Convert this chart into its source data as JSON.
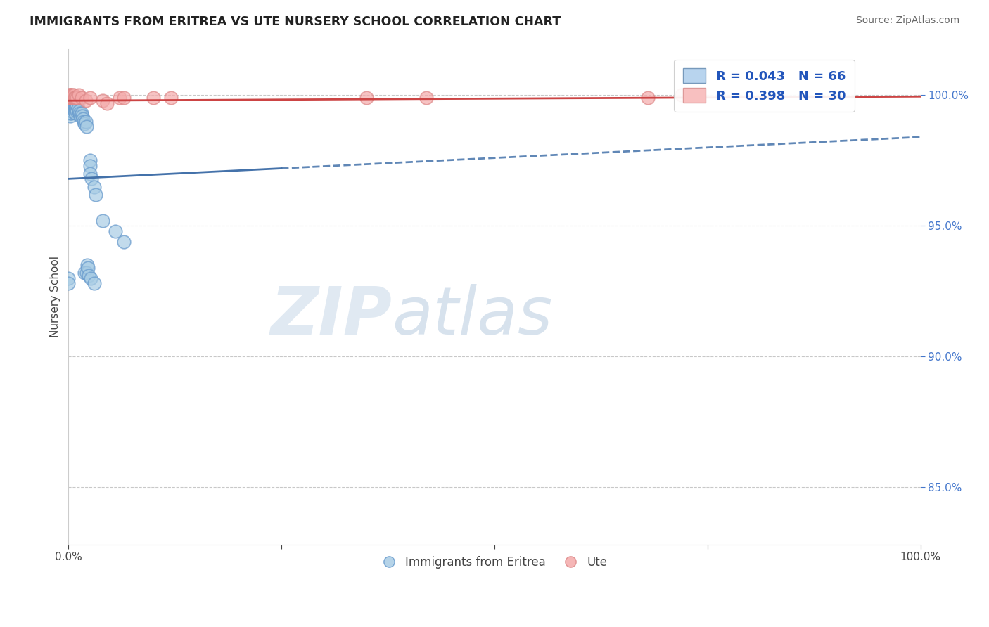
{
  "title": "IMMIGRANTS FROM ERITREA VS UTE NURSERY SCHOOL CORRELATION CHART",
  "source": "Source: ZipAtlas.com",
  "ylabel": "Nursery School",
  "x_series1_label": "Immigrants from Eritrea",
  "x_series2_label": "Ute",
  "legend_r1": "R = 0.043",
  "legend_n1": "N = 66",
  "legend_r2": "R = 0.398",
  "legend_n2": "N = 30",
  "color_blue": "#a8cce4",
  "color_pink": "#f4aaaa",
  "edge_blue": "#6699cc",
  "edge_pink": "#dd8888",
  "trendline_blue": "#4472aa",
  "trendline_pink": "#cc4444",
  "background": "#ffffff",
  "xlim": [
    0.0,
    1.0
  ],
  "ylim": [
    0.828,
    1.018
  ],
  "yticks": [
    0.85,
    0.9,
    0.95,
    1.0
  ],
  "ytick_labels": [
    "85.0%",
    "90.0%",
    "95.0%",
    "100.0%"
  ],
  "blue_x": [
    0.001,
    0.001,
    0.001,
    0.001,
    0.001,
    0.001,
    0.001,
    0.001,
    0.002,
    0.002,
    0.002,
    0.002,
    0.002,
    0.002,
    0.002,
    0.003,
    0.003,
    0.003,
    0.003,
    0.003,
    0.004,
    0.004,
    0.004,
    0.005,
    0.005,
    0.006,
    0.006,
    0.007,
    0.007,
    0.007,
    0.008,
    0.008,
    0.008,
    0.009,
    0.009,
    0.01,
    0.01,
    0.011,
    0.012,
    0.013,
    0.014,
    0.015,
    0.016,
    0.017,
    0.018,
    0.019,
    0.02,
    0.021,
    0.025,
    0.025,
    0.025,
    0.027,
    0.03,
    0.032,
    0.04,
    0.055,
    0.065,
    0.0,
    0.0,
    0.022,
    0.019,
    0.021,
    0.023,
    0.024,
    0.026,
    0.03
  ],
  "blue_y": [
    0.999,
    0.998,
    0.998,
    0.997,
    0.996,
    0.995,
    0.994,
    0.993,
    0.999,
    0.998,
    0.997,
    0.996,
    0.994,
    0.993,
    0.992,
    0.999,
    0.997,
    0.996,
    0.995,
    0.993,
    0.998,
    0.996,
    0.994,
    0.998,
    0.996,
    0.997,
    0.995,
    0.998,
    0.996,
    0.994,
    0.997,
    0.995,
    0.993,
    0.997,
    0.995,
    0.996,
    0.994,
    0.995,
    0.994,
    0.993,
    0.992,
    0.993,
    0.992,
    0.991,
    0.99,
    0.989,
    0.99,
    0.988,
    0.975,
    0.973,
    0.97,
    0.968,
    0.965,
    0.962,
    0.952,
    0.948,
    0.944,
    0.93,
    0.928,
    0.935,
    0.932,
    0.932,
    0.934,
    0.931,
    0.93,
    0.928
  ],
  "pink_x": [
    0.001,
    0.001,
    0.001,
    0.001,
    0.002,
    0.002,
    0.003,
    0.003,
    0.004,
    0.005,
    0.005,
    0.006,
    0.006,
    0.007,
    0.008,
    0.01,
    0.012,
    0.015,
    0.02,
    0.025,
    0.04,
    0.045,
    0.06,
    0.065,
    0.1,
    0.12,
    0.35,
    0.42,
    0.68,
    0.72
  ],
  "pink_y": [
    1.0,
    1.0,
    0.999,
    0.999,
    1.0,
    0.999,
    1.0,
    0.999,
    0.999,
    1.0,
    0.999,
    0.999,
    1.0,
    0.999,
    0.999,
    0.999,
    1.0,
    0.999,
    0.998,
    0.999,
    0.998,
    0.997,
    0.999,
    0.999,
    0.999,
    0.999,
    0.999,
    0.999,
    0.999,
    1.0
  ],
  "blue_trend_x0": 0.0,
  "blue_trend_x_solid_end": 0.25,
  "blue_trend_x1": 1.0,
  "blue_trend_y0": 0.968,
  "blue_trend_y1": 0.984,
  "pink_trend_y0": 0.9979,
  "pink_trend_y1": 0.9995
}
